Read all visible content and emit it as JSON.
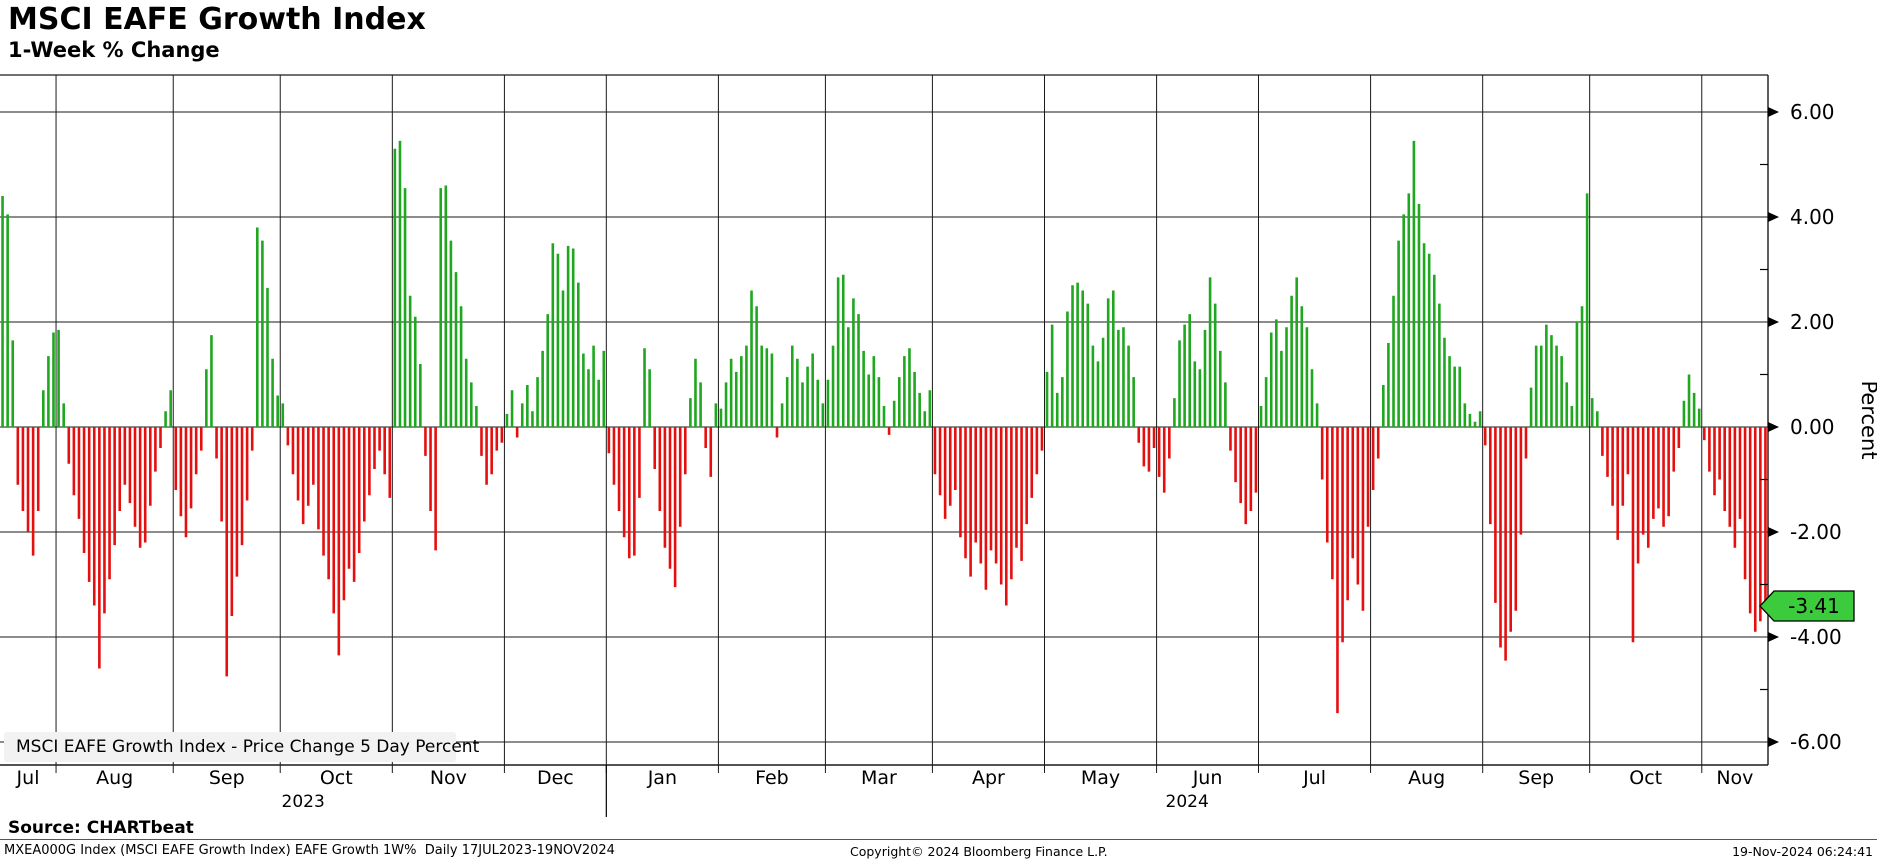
{
  "header": {
    "title": "MSCI EAFE Growth Index",
    "subtitle": "1-Week % Change"
  },
  "legend": {
    "label": "MSCI EAFE Growth Index - Price Change 5 Day Percent",
    "swatch_color": "#2db42d"
  },
  "footer": {
    "source": "Source: CHARTbeat",
    "description": "MXEA000G Index (MSCI EAFE Growth Index) EAFE Growth 1W%  Daily 17JUL2023-19NOV2024",
    "copyright": "Copyright© 2024 Bloomberg Finance L.P.",
    "timestamp": "19-Nov-2024 06:24:41"
  },
  "chart_data": {
    "type": "bar",
    "title": "MSCI EAFE Growth Index",
    "subtitle": "1-Week % Change",
    "ylabel": "Percent",
    "ylim": [
      -6.45,
      6.7
    ],
    "grid": true,
    "legend_position": "bottom-left",
    "colors": {
      "up": "#1fa71f",
      "down": "#e60f0f",
      "badge": "#3ccb3c",
      "grid": "#1a1a1a"
    },
    "y_axis": {
      "label": "Percent",
      "ticks": [
        {
          "v": 6,
          "label": "6.00"
        },
        {
          "v": 4,
          "label": "4.00"
        },
        {
          "v": 2,
          "label": "2.00"
        },
        {
          "v": 0,
          "label": "0.00"
        },
        {
          "v": -2,
          "label": "-2.00"
        },
        {
          "v": -4,
          "label": "-4.00"
        },
        {
          "v": -6,
          "label": "-6.00"
        }
      ],
      "minor_ticks": [
        5,
        3,
        1,
        -1,
        -3,
        -5
      ]
    },
    "badge": {
      "value": -3.41,
      "label": "-3.41"
    },
    "months": [
      {
        "label": "Jul",
        "days": 11
      },
      {
        "label": "Aug",
        "days": 23
      },
      {
        "label": "Sep",
        "days": 21
      },
      {
        "label": "Oct",
        "days": 22
      },
      {
        "label": "Nov",
        "days": 22
      },
      {
        "label": "Dec",
        "days": 20
      },
      {
        "label": "Jan",
        "days": 22
      },
      {
        "label": "Feb",
        "days": 21
      },
      {
        "label": "Mar",
        "days": 21
      },
      {
        "label": "Apr",
        "days": 22
      },
      {
        "label": "May",
        "days": 22
      },
      {
        "label": "Jun",
        "days": 20
      },
      {
        "label": "Jul",
        "days": 22
      },
      {
        "label": "Aug",
        "days": 22
      },
      {
        "label": "Sep",
        "days": 21
      },
      {
        "label": "Oct",
        "days": 22
      },
      {
        "label": "Nov",
        "days": 13
      }
    ],
    "years": [
      {
        "label": "2023",
        "start_month": 0,
        "end_month": 6
      },
      {
        "label": "2024",
        "start_month": 6,
        "end_month": 17
      }
    ],
    "values": [
      4.4,
      4.05,
      1.65,
      -1.1,
      -1.6,
      -2.0,
      -2.45,
      -1.6,
      0.7,
      1.35,
      1.8,
      1.85,
      0.45,
      -0.7,
      -1.3,
      -1.75,
      -2.4,
      -2.95,
      -3.4,
      -4.6,
      -3.55,
      -2.9,
      -2.25,
      -1.6,
      -1.1,
      -1.45,
      -1.9,
      -2.3,
      -2.2,
      -1.5,
      -0.85,
      -0.4,
      0.3,
      0.7,
      -1.2,
      -1.7,
      -2.1,
      -1.55,
      -0.9,
      -0.45,
      1.1,
      1.75,
      -0.6,
      -1.8,
      -4.75,
      -3.6,
      -2.85,
      -2.25,
      -1.4,
      -0.45,
      3.8,
      3.55,
      2.65,
      1.3,
      0.6,
      0.45,
      -0.35,
      -0.9,
      -1.4,
      -1.85,
      -1.5,
      -1.1,
      -1.95,
      -2.45,
      -2.9,
      -3.55,
      -4.35,
      -3.3,
      -2.7,
      -2.95,
      -2.4,
      -1.8,
      -1.3,
      -0.8,
      -0.45,
      -0.9,
      -1.35,
      5.3,
      5.45,
      4.55,
      2.5,
      2.1,
      1.2,
      -0.55,
      -1.6,
      -2.35,
      4.55,
      4.6,
      3.55,
      2.95,
      2.3,
      1.3,
      0.85,
      0.4,
      -0.55,
      -1.1,
      -0.9,
      -0.45,
      -0.3,
      0.25,
      0.7,
      -0.2,
      0.45,
      0.8,
      0.3,
      0.95,
      1.45,
      2.15,
      3.5,
      3.3,
      2.6,
      3.45,
      3.4,
      2.75,
      1.4,
      1.1,
      1.55,
      0.9,
      1.45,
      -0.5,
      -1.1,
      -1.6,
      -2.1,
      -2.5,
      -2.45,
      -1.35,
      1.5,
      1.1,
      -0.8,
      -1.6,
      -2.3,
      -2.7,
      -3.05,
      -1.9,
      -0.9,
      0.55,
      1.3,
      0.85,
      -0.4,
      -0.95,
      0.45,
      0.35,
      0.85,
      1.3,
      1.05,
      1.35,
      1.55,
      2.6,
      2.3,
      1.55,
      1.5,
      1.4,
      -0.2,
      0.45,
      0.95,
      1.55,
      1.3,
      0.85,
      1.15,
      1.4,
      0.9,
      0.45,
      0.9,
      1.55,
      2.85,
      2.9,
      1.9,
      2.45,
      2.15,
      1.45,
      1.0,
      1.35,
      0.95,
      0.4,
      -0.15,
      0.5,
      0.95,
      1.35,
      1.5,
      1.05,
      0.65,
      0.3,
      0.7,
      -0.9,
      -1.3,
      -1.75,
      -1.5,
      -1.2,
      -2.1,
      -2.5,
      -2.85,
      -2.2,
      -2.6,
      -3.1,
      -2.35,
      -2.6,
      -3.0,
      -3.4,
      -2.9,
      -2.3,
      -2.55,
      -1.85,
      -1.35,
      -0.9,
      -0.45,
      1.05,
      1.95,
      0.65,
      0.95,
      2.2,
      2.7,
      2.75,
      2.6,
      2.35,
      1.55,
      1.25,
      1.7,
      2.45,
      2.6,
      1.85,
      1.9,
      1.55,
      0.95,
      -0.3,
      -0.75,
      -0.85,
      -0.4,
      -0.95,
      -1.25,
      -0.6,
      0.55,
      1.65,
      1.95,
      2.15,
      1.25,
      1.1,
      1.85,
      2.85,
      2.35,
      1.45,
      0.85,
      -0.45,
      -1.05,
      -1.45,
      -1.85,
      -1.6,
      -1.25,
      0.4,
      0.95,
      1.8,
      2.05,
      1.45,
      1.9,
      2.5,
      2.85,
      2.3,
      1.9,
      1.1,
      0.45,
      -1.0,
      -2.2,
      -2.9,
      -5.45,
      -4.1,
      -3.3,
      -2.5,
      -3.0,
      -3.5,
      -1.9,
      -1.2,
      -0.6,
      0.8,
      1.6,
      2.5,
      3.55,
      4.05,
      4.45,
      5.45,
      4.25,
      3.5,
      3.3,
      2.9,
      2.35,
      1.7,
      1.35,
      1.15,
      1.15,
      0.45,
      0.25,
      0.1,
      0.3,
      -0.35,
      -1.85,
      -3.35,
      -4.2,
      -4.45,
      -3.9,
      -3.5,
      -2.05,
      -0.6,
      0.75,
      1.55,
      1.55,
      1.95,
      1.75,
      1.55,
      1.35,
      0.85,
      0.4,
      2.0,
      2.3,
      4.45,
      0.55,
      0.3,
      -0.55,
      -0.95,
      -1.5,
      -2.15,
      -1.5,
      -0.9,
      -4.1,
      -2.6,
      -2.05,
      -2.3,
      -1.75,
      -1.55,
      -1.9,
      -1.7,
      -0.85,
      -0.4,
      0.5,
      1.0,
      0.65,
      0.35,
      -0.25,
      -0.85,
      -1.3,
      -1.0,
      -1.6,
      -1.9,
      -2.3,
      -1.75,
      -2.9,
      -3.55,
      -3.9,
      -3.7,
      -3.41
    ]
  }
}
